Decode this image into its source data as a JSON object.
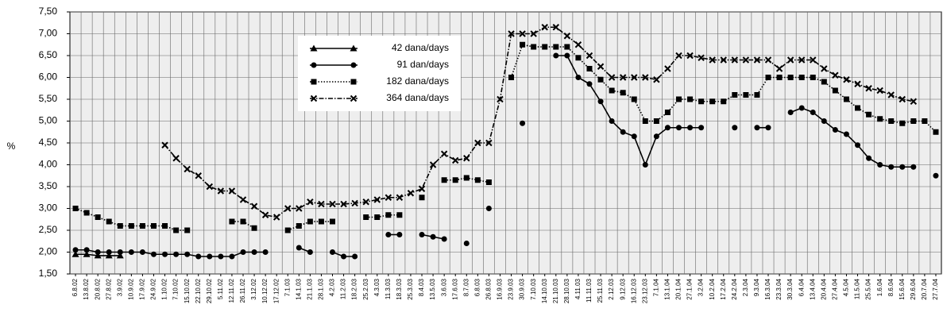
{
  "chart_data": {
    "type": "line",
    "y_label": "%",
    "categories": [
      "6.8.02",
      "13.8.02",
      "20.8.02",
      "27.8.02",
      "3.9.02",
      "10.9.02",
      "17.9.02",
      "24.9.02",
      "1.10.02",
      "7.10.02",
      "15.10.02",
      "22.10.02",
      "29.10.02",
      "5.11.02",
      "12.11.02",
      "26.11.02",
      "3.12.02",
      "10.12.02",
      "17.12.02",
      "7.1.03",
      "14.1.03",
      "21.1.03",
      "28.1.03",
      "4.2.03",
      "11.2.03",
      "18.2.03",
      "25.2.03",
      "4.3.03",
      "11.3.03",
      "18.3.03",
      "25.3.03",
      "8.4.03",
      "13.5.03",
      "3.6.03",
      "17.6.03",
      "8.7.03",
      "6.8.03",
      "26.8.03",
      "16.9.03",
      "23.9.03",
      "30.9.03",
      "7.10.03",
      "14.10.03",
      "21.10.03",
      "28.10.03",
      "4.11.03",
      "11.11.03",
      "25.11.03",
      "2.12.03",
      "9.12.03",
      "16.12.03",
      "23.12.03",
      "7.1.04",
      "13.1.04",
      "20.1.04",
      "27.1.04",
      "3.2.04",
      "10.2.04",
      "17.2.04",
      "24.2.04",
      "2.3.04",
      "9.3.04",
      "16.3.04",
      "23.3.04",
      "30.3.04",
      "6.4.04",
      "13.4.04",
      "20.4.04",
      "27.4.04",
      "4.5.04",
      "11.5.04",
      "25.5.04",
      "1.6.04",
      "8.6.04",
      "15.6.04",
      "29.6.04",
      "20.7.04",
      "27.7.04"
    ],
    "series": [
      {
        "name": "42 dana/days",
        "color": "#000000",
        "marker": "triangle",
        "dash": "solid",
        "values": [
          1.95,
          1.95,
          1.92,
          1.92,
          1.92,
          null,
          null,
          null,
          null,
          null,
          null,
          null,
          null,
          null,
          null,
          null,
          null,
          null,
          null,
          null,
          null,
          null,
          null,
          null,
          null,
          null,
          null,
          null,
          null,
          null,
          null,
          null,
          null,
          null,
          null,
          null,
          null,
          null,
          null,
          null,
          null,
          null,
          null,
          null,
          null,
          null,
          null,
          null,
          null,
          null,
          null,
          null,
          null,
          null,
          null,
          null,
          null,
          null,
          null,
          null,
          null,
          null,
          null,
          null,
          null,
          null,
          null,
          null,
          null,
          null,
          null,
          null,
          null,
          null,
          null,
          null,
          null,
          null
        ]
      },
      {
        "name": "91 dan/days",
        "color": "#000000",
        "marker": "circle",
        "dash": "solid",
        "values": [
          2.05,
          2.05,
          2.0,
          2.0,
          2.0,
          2.0,
          2.0,
          1.95,
          1.95,
          1.95,
          1.95,
          1.9,
          1.9,
          1.9,
          1.9,
          2.0,
          2.0,
          2.0,
          null,
          null,
          2.1,
          2.0,
          null,
          2.0,
          1.9,
          1.9,
          null,
          null,
          2.4,
          2.4,
          null,
          2.4,
          2.35,
          2.3,
          null,
          2.2,
          null,
          3.0,
          null,
          null,
          4.95,
          null,
          null,
          6.5,
          6.5,
          6.0,
          5.85,
          5.45,
          5.0,
          4.75,
          4.65,
          4.0,
          4.65,
          4.85,
          4.85,
          4.85,
          4.85,
          null,
          null,
          4.85,
          null,
          4.85,
          4.85,
          null,
          5.2,
          5.3,
          5.2,
          5.0,
          4.8,
          4.7,
          4.45,
          4.15,
          4.0,
          3.95,
          3.95,
          3.95,
          null,
          3.75
        ]
      },
      {
        "name": "182 dana/days",
        "color": "#000000",
        "marker": "square",
        "dash": "dotted",
        "values": [
          3.0,
          2.9,
          2.8,
          2.7,
          2.6,
          2.6,
          2.6,
          2.6,
          2.6,
          2.5,
          2.5,
          null,
          null,
          null,
          2.7,
          2.7,
          2.55,
          null,
          null,
          2.5,
          2.6,
          2.7,
          2.7,
          2.7,
          null,
          null,
          2.8,
          2.8,
          2.85,
          2.85,
          null,
          3.25,
          null,
          3.65,
          3.65,
          3.7,
          3.65,
          3.6,
          null,
          6.0,
          6.75,
          6.7,
          6.7,
          6.7,
          6.7,
          6.45,
          6.2,
          5.95,
          5.7,
          5.65,
          5.5,
          5.0,
          5.0,
          5.2,
          5.5,
          5.5,
          5.45,
          5.45,
          5.45,
          5.6,
          5.6,
          5.6,
          6.0,
          6.0,
          6.0,
          6.0,
          6.0,
          5.9,
          5.7,
          5.5,
          5.3,
          5.15,
          5.05,
          5.0,
          4.95,
          5.0,
          5.0,
          4.75
        ]
      },
      {
        "name": "364 dana/days",
        "color": "#000000",
        "marker": "cross",
        "dash": "dashdot",
        "values": [
          null,
          null,
          null,
          null,
          null,
          null,
          null,
          null,
          4.45,
          4.15,
          3.9,
          3.75,
          3.5,
          3.4,
          3.4,
          3.2,
          3.05,
          2.85,
          2.8,
          3.0,
          3.0,
          3.15,
          3.1,
          3.1,
          3.1,
          3.12,
          3.15,
          3.2,
          3.25,
          3.25,
          3.35,
          3.45,
          4.0,
          4.25,
          4.1,
          4.15,
          4.5,
          4.5,
          5.5,
          7.0,
          7.0,
          7.0,
          7.15,
          7.15,
          6.95,
          6.75,
          6.5,
          6.25,
          6.0,
          6.0,
          6.0,
          6.0,
          5.95,
          6.2,
          6.5,
          6.5,
          6.45,
          6.4,
          6.4,
          6.4,
          6.4,
          6.4,
          6.4,
          6.2,
          6.4,
          6.4,
          6.4,
          6.2,
          6.05,
          5.95,
          5.85,
          5.75,
          5.7,
          5.6,
          5.5,
          5.45,
          null,
          null
        ]
      }
    ],
    "ylim": [
      1.5,
      7.5
    ],
    "yticks": [
      {
        "value": 1.5,
        "label": "1,50"
      },
      {
        "value": 2,
        "label": "2,00"
      },
      {
        "value": 2.5,
        "label": "2,50"
      },
      {
        "value": 3,
        "label": "3,00"
      },
      {
        "value": 3.5,
        "label": "3,50"
      },
      {
        "value": 4,
        "label": "4,00"
      },
      {
        "value": 4.5,
        "label": "4,50"
      },
      {
        "value": 5,
        "label": "5,00"
      },
      {
        "value": 5.5,
        "label": "5,50"
      },
      {
        "value": 6,
        "label": "6,00"
      },
      {
        "value": 6.5,
        "label": "6,50"
      },
      {
        "value": 7,
        "label": "7,00"
      },
      {
        "value": 7.5,
        "label": "7,50"
      }
    ],
    "grid": true,
    "legend": "top-center"
  }
}
